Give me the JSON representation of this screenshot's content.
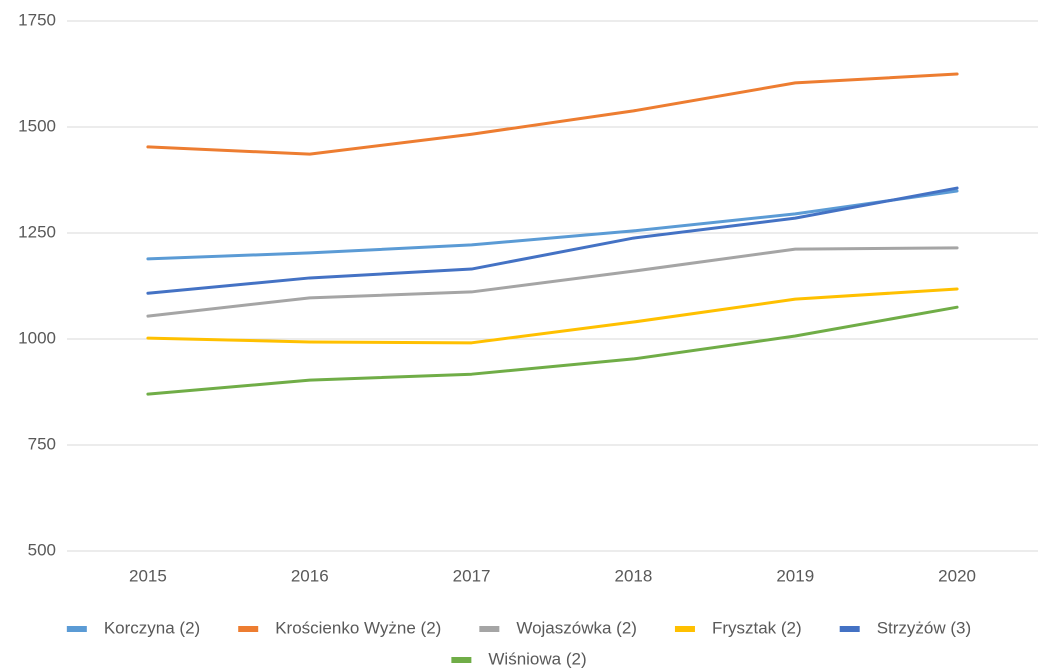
{
  "chart_data": {
    "type": "line",
    "categories": [
      "2015",
      "2016",
      "2017",
      "2018",
      "2019",
      "2020"
    ],
    "series": [
      {
        "name": "Korczyna (2)",
        "color": "#5b9bd5",
        "values": [
          1189,
          1203,
          1222,
          1255,
          1295,
          1349
        ]
      },
      {
        "name": "Krościenko Wyżne (2)",
        "color": "#ed7d31",
        "values": [
          1453,
          1436,
          1483,
          1538,
          1604,
          1625
        ]
      },
      {
        "name": "Wojaszówka (2)",
        "color": "#a5a5a5",
        "values": [
          1054,
          1097,
          1111,
          1160,
          1212,
          1215
        ]
      },
      {
        "name": "Frysztak (2)",
        "color": "#ffc000",
        "values": [
          1002,
          993,
          991,
          1040,
          1094,
          1118
        ]
      },
      {
        "name": "Strzyżów (3)",
        "color": "#4472c4",
        "values": [
          1108,
          1144,
          1165,
          1238,
          1285,
          1356
        ]
      },
      {
        "name": "Wiśniowa (2)",
        "color": "#70ad47",
        "values": [
          870,
          903,
          917,
          953,
          1007,
          1075
        ]
      }
    ],
    "ylim": [
      500,
      1750
    ],
    "yticks": [
      500,
      750,
      1000,
      1250,
      1500,
      1750
    ],
    "grid": true,
    "legend": "bottom"
  }
}
